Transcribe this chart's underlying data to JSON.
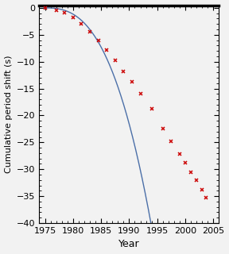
{
  "title": "",
  "xlabel": "Year",
  "ylabel": "Cumulative period shift (s)",
  "xlim": [
    1974.0,
    2006.0
  ],
  "ylim": [
    -40,
    0.5
  ],
  "xticks": [
    1975,
    1980,
    1985,
    1990,
    1995,
    2000,
    2005
  ],
  "yticks": [
    0,
    -5,
    -10,
    -15,
    -20,
    -25,
    -30,
    -35,
    -40
  ],
  "curve_color": "#4b6fa8",
  "data_color": "#cc0000",
  "background_color": "#f2f2f2",
  "data_points": [
    [
      1975.0,
      0.0
    ],
    [
      1977.0,
      -0.4
    ],
    [
      1978.5,
      -0.9
    ],
    [
      1980.0,
      -1.8
    ],
    [
      1981.5,
      -3.0
    ],
    [
      1983.0,
      -4.5
    ],
    [
      1984.5,
      -6.1
    ],
    [
      1986.0,
      -7.9
    ],
    [
      1987.5,
      -9.8
    ],
    [
      1989.0,
      -11.8
    ],
    [
      1990.5,
      -13.8
    ],
    [
      1992.0,
      -16.0
    ],
    [
      1994.0,
      -18.8
    ],
    [
      1996.0,
      -22.5
    ],
    [
      1997.5,
      -24.8
    ],
    [
      1999.0,
      -27.1
    ],
    [
      2000.0,
      -28.8
    ],
    [
      2001.0,
      -30.5
    ],
    [
      2002.0,
      -32.1
    ],
    [
      2003.0,
      -33.8
    ],
    [
      2003.7,
      -35.3
    ]
  ],
  "curve_t0": 1974.8,
  "curve_k": 0.01315,
  "curve_n": 2.72,
  "figsize": [
    2.88,
    3.2
  ],
  "dpi": 100
}
